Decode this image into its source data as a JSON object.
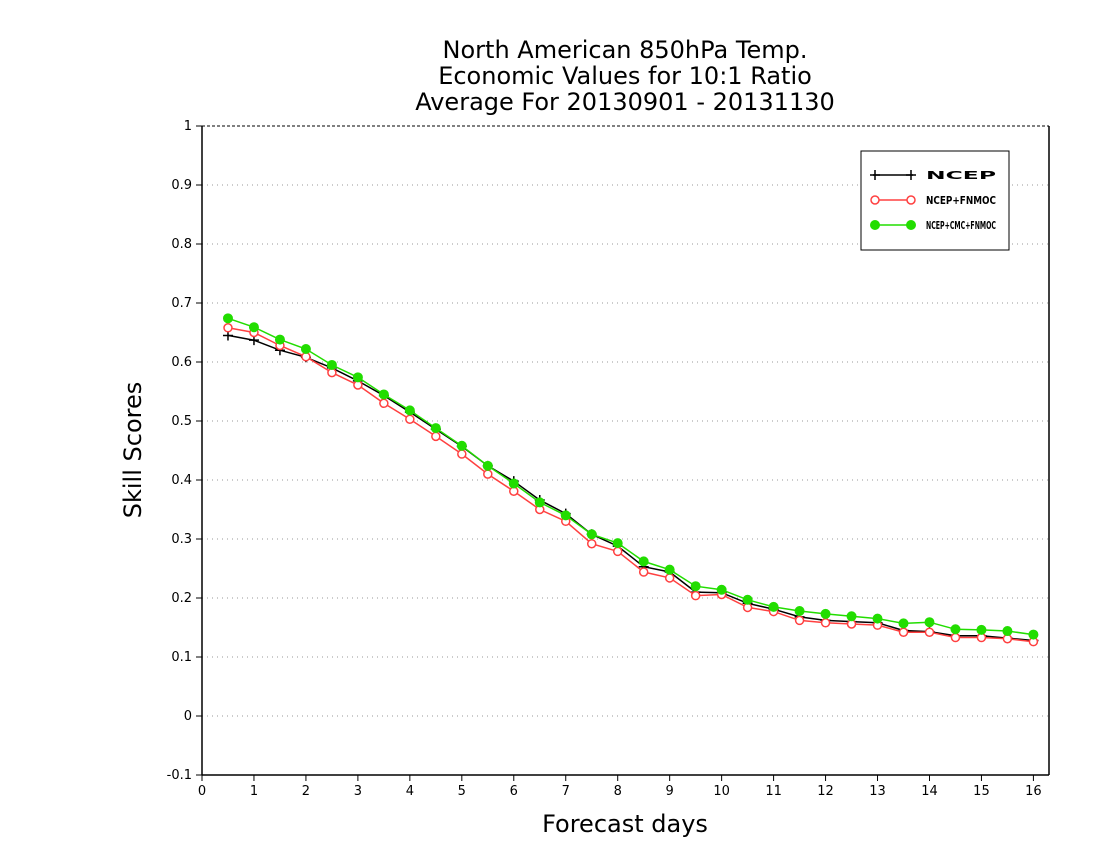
{
  "chart_data": {
    "type": "line",
    "title": [
      "North American 850hPa Temp.",
      "Economic Values for 10:1 Ratio",
      "Average For 20130901 - 20131130"
    ],
    "xlabel": "Forecast days",
    "ylabel": "Skill Scores",
    "xlim": [
      0,
      16.3
    ],
    "ylim": [
      -0.1,
      1
    ],
    "xticks": [
      0,
      1,
      2,
      3,
      4,
      5,
      6,
      7,
      8,
      9,
      10,
      11,
      12,
      13,
      14,
      15,
      16
    ],
    "yticks": [
      -0.1,
      0,
      0.1,
      0.2,
      0.3,
      0.4,
      0.5,
      0.6,
      0.7,
      0.8,
      0.9,
      1
    ],
    "ytick_labels": [
      "-0.1",
      "0",
      "0.1",
      "0.2",
      "0.3",
      "0.4",
      "0.5",
      "0.6",
      "0.7",
      "0.8",
      "0.9",
      "1"
    ],
    "grid": "horizontal dotted",
    "legend_position": "top-right",
    "x": [
      0.5,
      1,
      1.5,
      2,
      2.5,
      3,
      3.5,
      4,
      4.5,
      5,
      5.5,
      6,
      6.5,
      7,
      7.5,
      8,
      8.5,
      9,
      9.5,
      10,
      10.5,
      11,
      11.5,
      12,
      12.5,
      13,
      13.5,
      14,
      14.5,
      15,
      15.5,
      16
    ],
    "series": [
      {
        "name": "NCEP",
        "color": "#000000",
        "marker": "plus",
        "values": [
          0.645,
          0.637,
          0.62,
          0.608,
          0.59,
          0.568,
          0.543,
          0.515,
          0.486,
          0.457,
          0.424,
          0.398,
          0.366,
          0.343,
          0.308,
          0.288,
          0.253,
          0.244,
          0.21,
          0.209,
          0.191,
          0.181,
          0.168,
          0.162,
          0.16,
          0.158,
          0.145,
          0.143,
          0.136,
          0.136,
          0.132,
          0.128
        ]
      },
      {
        "name": "NCEP+FNMOC",
        "color": "#ff4040",
        "marker": "open-circle",
        "values": [
          0.658,
          0.65,
          0.628,
          0.609,
          0.582,
          0.561,
          0.53,
          0.503,
          0.474,
          0.444,
          0.41,
          0.381,
          0.35,
          0.33,
          0.292,
          0.279,
          0.244,
          0.234,
          0.204,
          0.206,
          0.184,
          0.177,
          0.162,
          0.158,
          0.156,
          0.154,
          0.142,
          0.142,
          0.133,
          0.133,
          0.131,
          0.126
        ]
      },
      {
        "name": "NCEP+CMC+FNMOC",
        "color": "#22dd00",
        "marker": "filled-circle",
        "values": [
          0.674,
          0.659,
          0.638,
          0.622,
          0.595,
          0.574,
          0.545,
          0.518,
          0.488,
          0.458,
          0.424,
          0.394,
          0.362,
          0.34,
          0.308,
          0.293,
          0.262,
          0.248,
          0.22,
          0.214,
          0.197,
          0.185,
          0.178,
          0.173,
          0.169,
          0.165,
          0.157,
          0.159,
          0.147,
          0.146,
          0.144,
          0.138
        ]
      }
    ]
  }
}
